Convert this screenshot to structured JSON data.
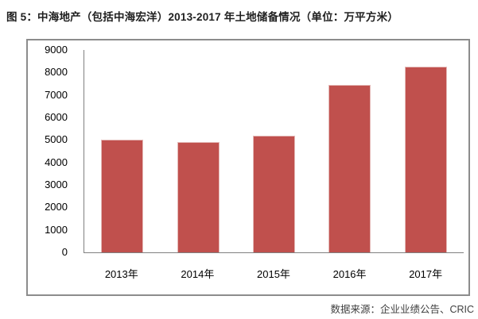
{
  "title": "图 5：中海地产（包括中海宏洋）2013-2017 年土地储备情况（单位：万平方米）",
  "source": "数据来源：企业业绩公告、CRIC",
  "chart_data": {
    "type": "bar",
    "categories": [
      "2013年",
      "2014年",
      "2015年",
      "2016年",
      "2017年"
    ],
    "values": [
      5000,
      4900,
      5200,
      7450,
      8250
    ],
    "title": "中海地产（包括中海宏洋）2013-2017 年土地储备情况",
    "xlabel": "",
    "ylabel": "",
    "unit": "万平方米",
    "ylim": [
      0,
      9000
    ],
    "ytick_step": 1000,
    "grid": false,
    "legend_position": "none",
    "bar_color": "#c0504d",
    "bar_border_color": "#e4b9b7",
    "axis_color": "#808080",
    "frame_color": "#8c8c8c"
  }
}
